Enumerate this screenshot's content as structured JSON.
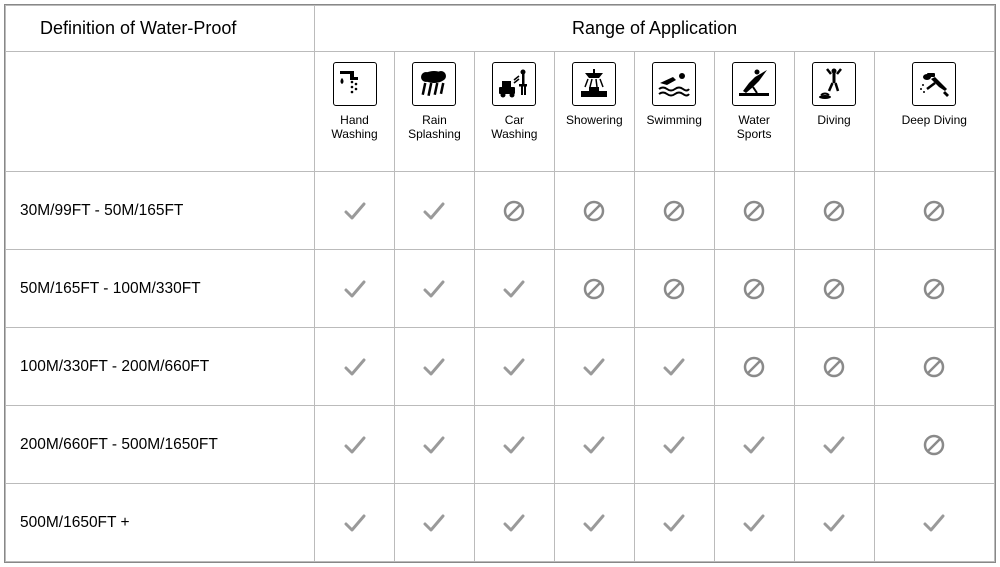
{
  "headers": {
    "definition": "Definition of Water-Proof",
    "range": "Range of Application"
  },
  "activities": [
    {
      "id": "hand-washing",
      "label": "Hand\nWashing"
    },
    {
      "id": "rain-splashing",
      "label": "Rain\nSplashing"
    },
    {
      "id": "car-washing",
      "label": "Car\nWashing"
    },
    {
      "id": "showering",
      "label": "Showering"
    },
    {
      "id": "swimming",
      "label": "Swimming"
    },
    {
      "id": "water-sports",
      "label": "Water\nSports"
    },
    {
      "id": "diving",
      "label": "Diving"
    },
    {
      "id": "deep-diving",
      "label": "Deep Diving"
    }
  ],
  "rows": [
    {
      "depth": "30M/99FT    -  50M/165FT",
      "values": [
        "yes",
        "yes",
        "no",
        "no",
        "no",
        "no",
        "no",
        "no"
      ]
    },
    {
      "depth": "50M/165FT   -  100M/330FT",
      "values": [
        "yes",
        "yes",
        "yes",
        "no",
        "no",
        "no",
        "no",
        "no"
      ]
    },
    {
      "depth": "100M/330FT    -   200M/660FT",
      "values": [
        "yes",
        "yes",
        "yes",
        "yes",
        "yes",
        "no",
        "no",
        "no"
      ]
    },
    {
      "depth": "200M/660FT   -   500M/1650FT",
      "values": [
        "yes",
        "yes",
        "yes",
        "yes",
        "yes",
        "yes",
        "yes",
        "no"
      ]
    },
    {
      "depth": "500M/1650FT  +",
      "values": [
        "yes",
        "yes",
        "yes",
        "yes",
        "yes",
        "yes",
        "yes",
        "yes"
      ]
    }
  ],
  "colors": {
    "check": "#9a9a9a",
    "prohibit": "#8a8a8a",
    "border": "#bbbbbb",
    "icon_stroke": "#000000",
    "background": "#ffffff",
    "text": "#000000"
  },
  "icons_svg": {
    "hand-washing": "<svg viewBox='0 0 34 34'><g fill='#000'><rect x='2' y='4' width='12' height='3'/><rect x='12' y='4' width='4' height='6'/><rect x='12' y='10' width='8' height='3'/><circle cx='14' cy='15' r='1.3'/><circle cx='18' cy='17' r='1.3'/><circle cx='14' cy='20' r='1.3'/><circle cx='18' cy='22' r='1.3'/><circle cx='14' cy='25' r='1.3'/><path d='M4 11 C2 13 2 16 4 17 C6 16 6 13 4 11 Z'/></g></svg>",
    "rain-splashing": "<svg viewBox='0 0 34 34'><g fill='#000'><ellipse cx='17' cy='10' rx='11' ry='6'/><circle cx='9' cy='10' r='5'/><circle cx='24' cy='9' r='5'/><rect x='7' y='16' width='2.5' height='12' transform='rotate(12 8 16)'/><rect x='13' y='16' width='2.5' height='13' transform='rotate(12 14 16)'/><rect x='19' y='16' width='2.5' height='12' transform='rotate(12 20 16)'/><rect x='25' y='16' width='2.5' height='11' transform='rotate(12 26 16)'/></g></svg>",
    "car-washing": "<svg viewBox='0 0 34 34'><g fill='#000'><rect x='2' y='20' width='16' height='7' rx='1'/><rect x='5' y='14' width='9' height='6'/><circle cx='6' cy='28' r='2.5'/><circle cx='15' cy='28' r='2.5'/><circle cx='26' cy='5' r='2.5'/><rect x='25' y='7' width='2.5' height='10'/><rect x='22' y='17' width='8' height='2.5'/><rect x='24' y='19' width='2' height='9'/><rect x='27' y='19' width='2' height='9'/><line x1='22' y1='9' x2='17' y2='13' stroke='#000' stroke-width='1.5'/><line x1='22' y1='12' x2='17' y2='16' stroke='#000' stroke-width='1.5'/></g></svg>",
    "showering": "<svg viewBox='0 0 34 34'><g fill='#000'><path d='M8 6 L26 6 L22 11 L12 11 Z'/><rect x='16' y='2' width='2' height='4'/><rect x='4' y='24' width='26' height='6'/><rect x='12' y='20' width='10' height='4'/><line x1='11' y1='12' x2='8' y2='20' stroke='#000' stroke-width='1.5'/><line x1='15' y1='12' x2='13' y2='20' stroke='#000' stroke-width='1.5'/><line x1='19' y1='12' x2='20' y2='20' stroke='#000' stroke-width='1.5'/><line x1='23' y1='12' x2='26' y2='20' stroke='#000' stroke-width='1.5'/></g></svg>",
    "swimming": "<svg viewBox='0 0 34 34'><g fill='#000'><circle cx='25' cy='9' r='3'/><path d='M3 16 L16 10 L19 13 L10 18 Z'/><path d='M2 22 Q6 19 10 22 T18 22 T26 22 T32 22' stroke='#000' stroke-width='2' fill='none'/><path d='M2 27 Q6 24 10 27 T18 27 T26 27 T32 27' stroke='#000' stroke-width='2' fill='none'/></g></svg>",
    "water-sports": "<svg viewBox='0 0 34 34'><g fill='#000'><circle cx='20' cy='5' r='2.5'/><path d='M30 3 L18 10 L12 16 L6 24 L9 26 L16 20 L22 14 Z'/><rect x='2' y='26' width='30' height='3'/><path d='M16 20 L20 26' stroke='#000' stroke-width='2'/></g></svg>",
    "diving": "<svg viewBox='0 0 34 34'><g fill='#000'><circle cx='17' cy='4' r='2.5'/><rect x='15.5' y='6' width='3' height='10'/><path d='M14 7 L10 2' stroke='#000' stroke-width='2.5'/><path d='M20 7 L24 2' stroke='#000' stroke-width='2.5'/><path d='M15.5 16 L12 24' stroke='#000' stroke-width='2.5'/><path d='M18.5 16 L21 24' stroke='#000' stroke-width='2.5'/><path d='M4 28 Q8 25 12 28' stroke='#000' stroke-width='2' fill='none'/><ellipse cx='8' cy='30' rx='6' ry='2'/></g></svg>",
    "deep-diving": "<svg viewBox='0 0 34 34'><g fill='#000'><ellipse cx='10' cy='10' rx='4' ry='3'/><rect x='10' y='6' width='8' height='4' rx='1'/><path d='M14 12 L22 20 L28 24 L30 22 L26 18 L18 10 Z'/><path d='M18 16 L10 22' stroke='#000' stroke-width='2.5'/><path d='M28 24 L32 28 L30 30 L26 26 Z'/><circle cx='6' cy='18' r='1'/><circle cx='4' cy='22' r='1'/><circle cx='7' cy='25' r='1'/></g></svg>"
  },
  "mark_svg": {
    "yes": "<svg viewBox='0 0 26 26'><path d='M4 14 L10 20 L22 6' stroke='#9a9a9a' stroke-width='3' fill='none' stroke-linecap='round' stroke-linejoin='round'/></svg>",
    "no": "<svg viewBox='0 0 26 26'><circle cx='13' cy='13' r='9' stroke='#8a8a8a' stroke-width='2.5' fill='none'/><line x1='7' y1='19' x2='19' y2='7' stroke='#8a8a8a' stroke-width='2.5'/></svg>"
  }
}
